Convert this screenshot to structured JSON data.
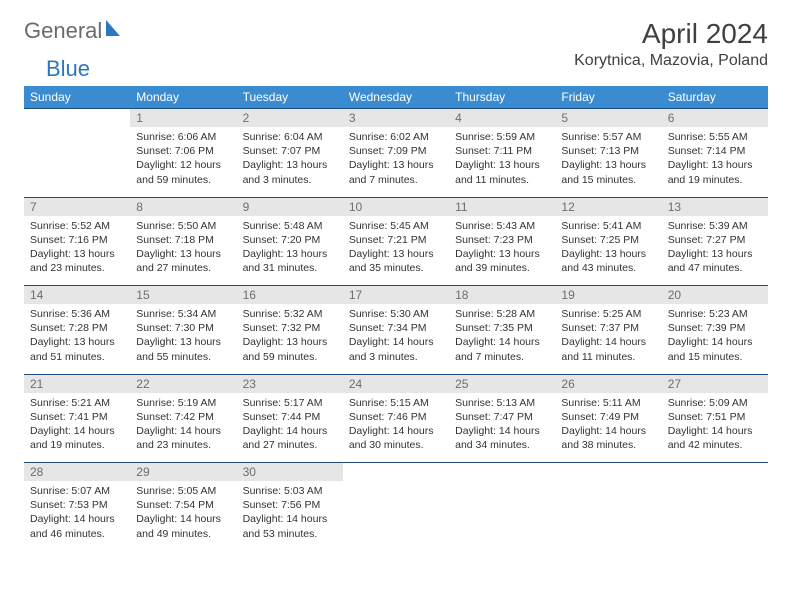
{
  "logo": {
    "word1": "General",
    "word2": "Blue"
  },
  "title": "April 2024",
  "location": "Korytnica, Mazovia, Poland",
  "day_headers": [
    "Sunday",
    "Monday",
    "Tuesday",
    "Wednesday",
    "Thursday",
    "Friday",
    "Saturday"
  ],
  "colors": {
    "header_bg": "#3b8bd0",
    "header_text": "#ffffff",
    "daynum_bg": "#e6e6e6",
    "daynum_text": "#6e6e6e",
    "border": "#1b4d7a",
    "logo_gray": "#6b6b6b",
    "logo_blue": "#2a78c2"
  },
  "weeks": [
    [
      null,
      {
        "n": "1",
        "sr": "6:06 AM",
        "ss": "7:06 PM",
        "dl": "12 hours and 59 minutes."
      },
      {
        "n": "2",
        "sr": "6:04 AM",
        "ss": "7:07 PM",
        "dl": "13 hours and 3 minutes."
      },
      {
        "n": "3",
        "sr": "6:02 AM",
        "ss": "7:09 PM",
        "dl": "13 hours and 7 minutes."
      },
      {
        "n": "4",
        "sr": "5:59 AM",
        "ss": "7:11 PM",
        "dl": "13 hours and 11 minutes."
      },
      {
        "n": "5",
        "sr": "5:57 AM",
        "ss": "7:13 PM",
        "dl": "13 hours and 15 minutes."
      },
      {
        "n": "6",
        "sr": "5:55 AM",
        "ss": "7:14 PM",
        "dl": "13 hours and 19 minutes."
      }
    ],
    [
      {
        "n": "7",
        "sr": "5:52 AM",
        "ss": "7:16 PM",
        "dl": "13 hours and 23 minutes."
      },
      {
        "n": "8",
        "sr": "5:50 AM",
        "ss": "7:18 PM",
        "dl": "13 hours and 27 minutes."
      },
      {
        "n": "9",
        "sr": "5:48 AM",
        "ss": "7:20 PM",
        "dl": "13 hours and 31 minutes."
      },
      {
        "n": "10",
        "sr": "5:45 AM",
        "ss": "7:21 PM",
        "dl": "13 hours and 35 minutes."
      },
      {
        "n": "11",
        "sr": "5:43 AM",
        "ss": "7:23 PM",
        "dl": "13 hours and 39 minutes."
      },
      {
        "n": "12",
        "sr": "5:41 AM",
        "ss": "7:25 PM",
        "dl": "13 hours and 43 minutes."
      },
      {
        "n": "13",
        "sr": "5:39 AM",
        "ss": "7:27 PM",
        "dl": "13 hours and 47 minutes."
      }
    ],
    [
      {
        "n": "14",
        "sr": "5:36 AM",
        "ss": "7:28 PM",
        "dl": "13 hours and 51 minutes."
      },
      {
        "n": "15",
        "sr": "5:34 AM",
        "ss": "7:30 PM",
        "dl": "13 hours and 55 minutes."
      },
      {
        "n": "16",
        "sr": "5:32 AM",
        "ss": "7:32 PM",
        "dl": "13 hours and 59 minutes."
      },
      {
        "n": "17",
        "sr": "5:30 AM",
        "ss": "7:34 PM",
        "dl": "14 hours and 3 minutes."
      },
      {
        "n": "18",
        "sr": "5:28 AM",
        "ss": "7:35 PM",
        "dl": "14 hours and 7 minutes."
      },
      {
        "n": "19",
        "sr": "5:25 AM",
        "ss": "7:37 PM",
        "dl": "14 hours and 11 minutes."
      },
      {
        "n": "20",
        "sr": "5:23 AM",
        "ss": "7:39 PM",
        "dl": "14 hours and 15 minutes."
      }
    ],
    [
      {
        "n": "21",
        "sr": "5:21 AM",
        "ss": "7:41 PM",
        "dl": "14 hours and 19 minutes."
      },
      {
        "n": "22",
        "sr": "5:19 AM",
        "ss": "7:42 PM",
        "dl": "14 hours and 23 minutes."
      },
      {
        "n": "23",
        "sr": "5:17 AM",
        "ss": "7:44 PM",
        "dl": "14 hours and 27 minutes."
      },
      {
        "n": "24",
        "sr": "5:15 AM",
        "ss": "7:46 PM",
        "dl": "14 hours and 30 minutes."
      },
      {
        "n": "25",
        "sr": "5:13 AM",
        "ss": "7:47 PM",
        "dl": "14 hours and 34 minutes."
      },
      {
        "n": "26",
        "sr": "5:11 AM",
        "ss": "7:49 PM",
        "dl": "14 hours and 38 minutes."
      },
      {
        "n": "27",
        "sr": "5:09 AM",
        "ss": "7:51 PM",
        "dl": "14 hours and 42 minutes."
      }
    ],
    [
      {
        "n": "28",
        "sr": "5:07 AM",
        "ss": "7:53 PM",
        "dl": "14 hours and 46 minutes."
      },
      {
        "n": "29",
        "sr": "5:05 AM",
        "ss": "7:54 PM",
        "dl": "14 hours and 49 minutes."
      },
      {
        "n": "30",
        "sr": "5:03 AM",
        "ss": "7:56 PM",
        "dl": "14 hours and 53 minutes."
      },
      null,
      null,
      null,
      null
    ]
  ],
  "labels": {
    "sunrise": "Sunrise: ",
    "sunset": "Sunset: ",
    "daylight": "Daylight: "
  }
}
